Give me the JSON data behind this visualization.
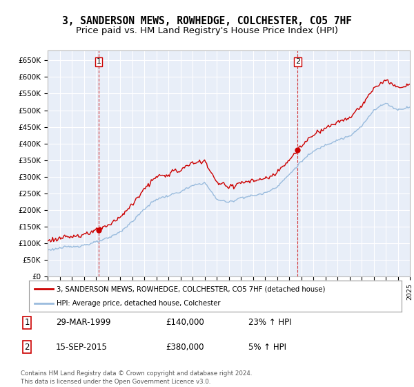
{
  "title": "3, SANDERSON MEWS, ROWHEDGE, COLCHESTER, CO5 7HF",
  "subtitle": "Price paid vs. HM Land Registry's House Price Index (HPI)",
  "ylim": [
    0,
    680000
  ],
  "yticks": [
    0,
    50000,
    100000,
    150000,
    200000,
    250000,
    300000,
    350000,
    400000,
    450000,
    500000,
    550000,
    600000,
    650000
  ],
  "ytick_labels": [
    "£0",
    "£50K",
    "£100K",
    "£150K",
    "£200K",
    "£250K",
    "£300K",
    "£350K",
    "£400K",
    "£450K",
    "£500K",
    "£550K",
    "£600K",
    "£650K"
  ],
  "sale1_date": 1999.24,
  "sale1_price": 140000,
  "sale2_date": 2015.71,
  "sale2_price": 380000,
  "line_color_property": "#cc0000",
  "line_color_hpi": "#99bbdd",
  "background_color": "#e8eef8",
  "grid_color": "#ffffff",
  "legend_entry1": "3, SANDERSON MEWS, ROWHEDGE, COLCHESTER, CO5 7HF (detached house)",
  "legend_entry2": "HPI: Average price, detached house, Colchester",
  "note1_label": "1",
  "note1_date": "29-MAR-1999",
  "note1_price": "£140,000",
  "note1_hpi": "23% ↑ HPI",
  "note2_label": "2",
  "note2_date": "15-SEP-2015",
  "note2_price": "£380,000",
  "note2_hpi": "5% ↑ HPI",
  "footer": "Contains HM Land Registry data © Crown copyright and database right 2024.\nThis data is licensed under the Open Government Licence v3.0.",
  "title_fontsize": 10.5,
  "subtitle_fontsize": 9.5
}
